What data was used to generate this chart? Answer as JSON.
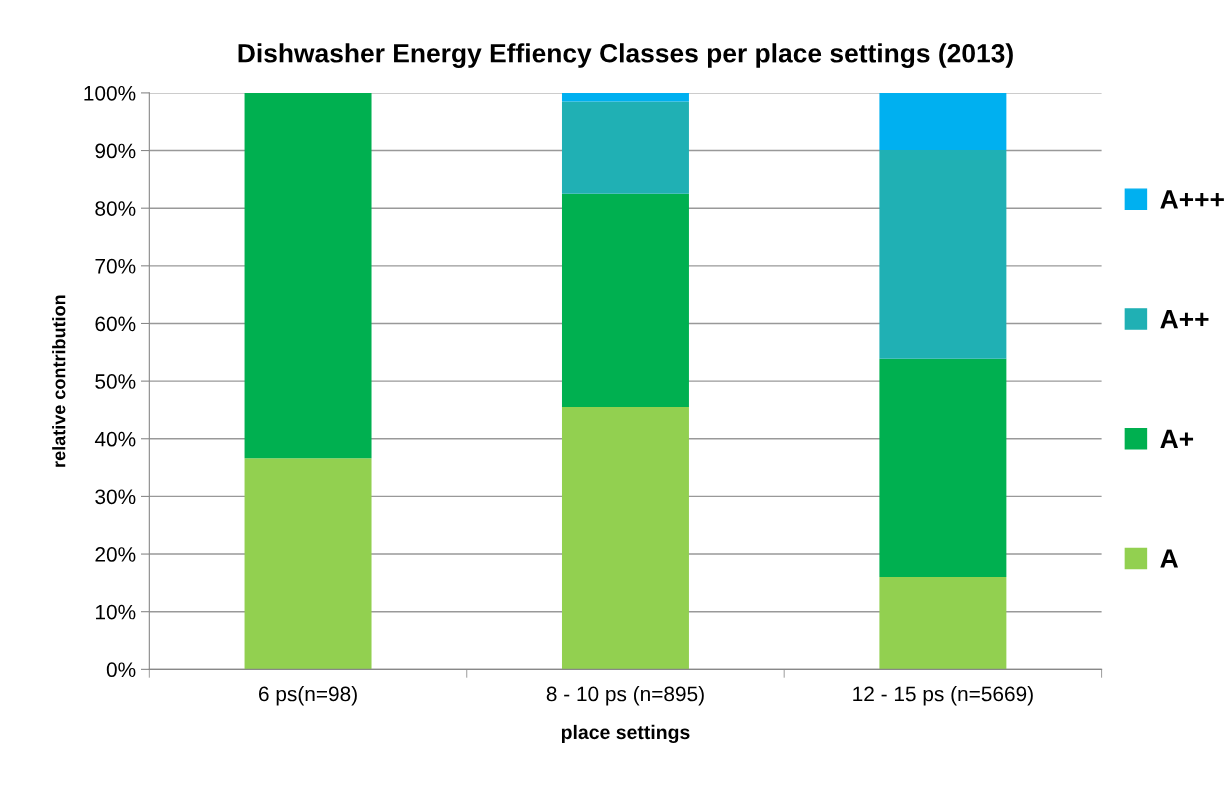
{
  "chart_data": {
    "type": "bar",
    "stacked": true,
    "title": "Dishwasher Energy Effiency Classes per place settings (2013)",
    "xlabel": "place settings",
    "ylabel": "relative contribution",
    "categories": [
      "6 ps(n=98)",
      "8 - 10 ps (n=895)",
      "12 - 15 ps (n=5669)"
    ],
    "series": [
      {
        "name": "A",
        "color": "#92d050",
        "values": [
          36.6,
          45.5,
          16.0
        ]
      },
      {
        "name": "A+",
        "color": "#00b050",
        "values": [
          63.4,
          37.0,
          37.9
        ]
      },
      {
        "name": "A++",
        "color": "#20b0b4",
        "values": [
          null,
          16.0,
          36.2
        ]
      },
      {
        "name": "A+++",
        "color": "#00b0f0",
        "values": [
          null,
          1.5,
          9.9
        ]
      }
    ],
    "ylim": [
      0,
      100
    ],
    "yticks": [
      {
        "value": 0,
        "label": "0%"
      },
      {
        "value": 10,
        "label": "10%"
      },
      {
        "value": 20,
        "label": "20%"
      },
      {
        "value": 30,
        "label": "30%"
      },
      {
        "value": 40,
        "label": "40%"
      },
      {
        "value": 50,
        "label": "50%"
      },
      {
        "value": 60,
        "label": "60%"
      },
      {
        "value": 70,
        "label": "70%"
      },
      {
        "value": 80,
        "label": "80%"
      },
      {
        "value": 90,
        "label": "90%"
      },
      {
        "value": 100,
        "label": "100%"
      }
    ],
    "grid": "y",
    "legend": "right"
  }
}
